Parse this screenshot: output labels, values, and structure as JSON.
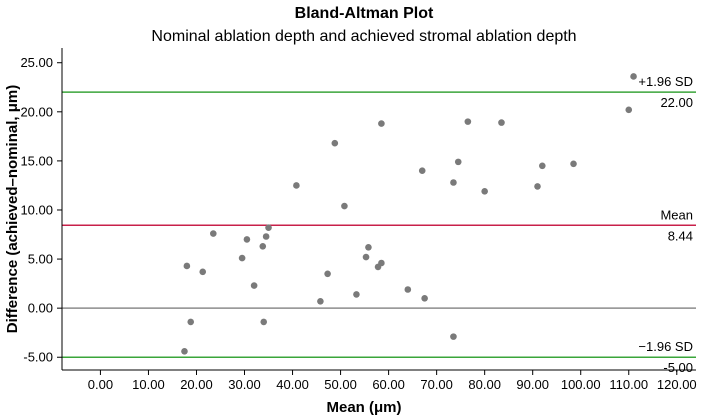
{
  "chart_data": {
    "type": "scatter",
    "title": "Bland-Altman Plot",
    "subtitle": "Nominal ablation depth and achieved stromal ablation depth",
    "xlabel": "Mean (μm)",
    "ylabel": "Difference (achieved–nominal, μm)",
    "xlim": [
      -8,
      124
    ],
    "ylim": [
      -6.3,
      26.5
    ],
    "x_ticks": [
      0,
      10,
      20,
      30,
      40,
      50,
      60,
      70,
      80,
      90,
      100,
      110,
      120
    ],
    "x_tick_labels": [
      "0.00",
      "10.00",
      "20.00",
      "30.00",
      "40.00",
      "50.00",
      "60.00",
      "70.00",
      "80.00",
      "90.00",
      "100.00",
      "110.00",
      "120.00"
    ],
    "y_ticks": [
      -5,
      0,
      5,
      10,
      15,
      20,
      25
    ],
    "y_tick_labels": [
      "-5.00",
      "0.00",
      "5.00",
      "10.00",
      "15.00",
      "20.00",
      "25.00"
    ],
    "reference_lines": [
      {
        "name": "upper-loa",
        "value": 22.0,
        "color": "#3aa53a",
        "label": "+1.96 SD",
        "value_label": "22.00"
      },
      {
        "name": "mean",
        "value": 8.44,
        "color": "#c8204a",
        "label": "Mean",
        "value_label": "8.44"
      },
      {
        "name": "zero",
        "value": 0,
        "color": "#8c8c8c",
        "label": "",
        "value_label": ""
      },
      {
        "name": "lower-loa",
        "value": -5.0,
        "color": "#3aa53a",
        "label": "−1.96 SD",
        "value_label": "-5.00"
      }
    ],
    "points": [
      {
        "x": 17.5,
        "y": -4.4
      },
      {
        "x": 18.0,
        "y": 4.3
      },
      {
        "x": 18.8,
        "y": -1.4
      },
      {
        "x": 21.3,
        "y": 3.7
      },
      {
        "x": 23.5,
        "y": 7.6
      },
      {
        "x": 29.5,
        "y": 5.1
      },
      {
        "x": 30.5,
        "y": 7.0
      },
      {
        "x": 32.0,
        "y": 2.3
      },
      {
        "x": 33.8,
        "y": 6.3
      },
      {
        "x": 34.5,
        "y": 7.3
      },
      {
        "x": 34.0,
        "y": -1.4
      },
      {
        "x": 35.0,
        "y": 8.2
      },
      {
        "x": 40.8,
        "y": 12.5
      },
      {
        "x": 45.8,
        "y": 0.7
      },
      {
        "x": 47.3,
        "y": 3.5
      },
      {
        "x": 48.8,
        "y": 16.8
      },
      {
        "x": 50.8,
        "y": 10.4
      },
      {
        "x": 53.3,
        "y": 1.4
      },
      {
        "x": 55.3,
        "y": 5.2
      },
      {
        "x": 55.8,
        "y": 6.2
      },
      {
        "x": 57.8,
        "y": 4.2
      },
      {
        "x": 58.5,
        "y": 4.6
      },
      {
        "x": 58.5,
        "y": 18.8
      },
      {
        "x": 64.0,
        "y": 1.9
      },
      {
        "x": 67.0,
        "y": 14.0
      },
      {
        "x": 67.5,
        "y": 1.0
      },
      {
        "x": 73.5,
        "y": 12.8
      },
      {
        "x": 73.5,
        "y": -2.9
      },
      {
        "x": 74.5,
        "y": 14.9
      },
      {
        "x": 76.5,
        "y": 19.0
      },
      {
        "x": 80.0,
        "y": 11.9
      },
      {
        "x": 83.5,
        "y": 18.9
      },
      {
        "x": 91.0,
        "y": 12.4
      },
      {
        "x": 92.0,
        "y": 14.5
      },
      {
        "x": 98.5,
        "y": 14.7
      },
      {
        "x": 110.0,
        "y": 20.2
      },
      {
        "x": 111.0,
        "y": 23.6
      }
    ],
    "colors": {
      "point": "#7a7a7a",
      "axis": "#000000",
      "background": "#ffffff"
    }
  }
}
